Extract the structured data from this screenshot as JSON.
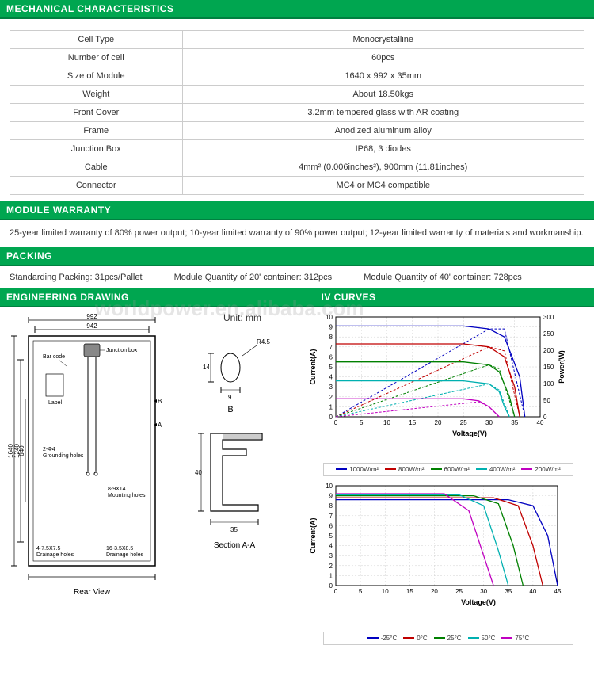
{
  "sections": {
    "mech": "MECHANICAL  CHARACTERISTICS",
    "warranty": "MODULE WARRANTY",
    "packing": "PACKING",
    "engdraw": "ENGINEERING DRAWING",
    "ivcurves": "IV CURVES"
  },
  "mech_table": {
    "rows": [
      [
        "Cell Type",
        "Monocrystalline"
      ],
      [
        "Number of cell",
        "60pcs"
      ],
      [
        "Size of Module",
        "1640 x 992 x 35mm"
      ],
      [
        "Weight",
        "About 18.50kgs"
      ],
      [
        "Front Cover",
        "3.2mm tempered glass with AR coating"
      ],
      [
        "Frame",
        "Anodized aluminum alloy"
      ],
      [
        "Junction Box",
        "IP68, 3 diodes"
      ],
      [
        "Cable",
        "4mm² (0.006inches²), 900mm (11.81inches)"
      ],
      [
        "Connector",
        "MC4 or MC4 compatible"
      ]
    ]
  },
  "warranty_text": "25-year limited warranty of 80% power output; 10-year limited warranty of 90% power output; 12-year limited warranty of materials and workmanship.",
  "packing": {
    "std": "Standarding Packing: 31pcs/Pallet",
    "c20": "Module Quantity of 20' container: 312pcs",
    "c40": "Module Quantity of 40' container: 728pcs"
  },
  "watermark": "worldpower.en.alibaba.com",
  "drawing": {
    "unit_label": "Unit: mm",
    "outer_w": "992",
    "inner_w": "942",
    "outer_h": "1640",
    "inner_h2": "1240",
    "inner_h1": "640",
    "bar_code": "Bar code",
    "jbox": "Junction box",
    "label_txt": "Label",
    "ground": "2-Φ4\nGrounding holes",
    "mount": "8-9X14\nMounting holes",
    "drain_l": "4-7.5X7.5\nDrainage holes",
    "drain_r": "16-3.5X8.5\nDrainage holes",
    "rear_view": "Rear View",
    "section_aa": "Section A-A",
    "section_b": "B",
    "r45": "R4.5",
    "d14": "14",
    "d9": "9",
    "f40": "40",
    "f35": "35"
  },
  "iv_chart1": {
    "type": "line",
    "title": "",
    "xlabel": "Voltage(V)",
    "ylabel_l": "Current(A)",
    "ylabel_r": "Power(W)",
    "xlim": [
      0,
      40
    ],
    "xtick_step": 5,
    "ylim_l": [
      0,
      10
    ],
    "ytick_l_step": 1,
    "ylim_r": [
      0,
      300
    ],
    "ytick_r_step": 50,
    "grid_color": "#d0d0d0",
    "bg": "#ffffff",
    "label_fontsize": 9,
    "series": [
      {
        "name": "1000W/m²",
        "color": "#0000c0",
        "iv": [
          [
            0,
            9.1
          ],
          [
            25,
            9.1
          ],
          [
            30,
            8.8
          ],
          [
            33,
            8.0
          ],
          [
            36,
            4.0
          ],
          [
            37,
            0
          ]
        ],
        "pv": [
          [
            0,
            0
          ],
          [
            30,
            264
          ],
          [
            33,
            264
          ],
          [
            37,
            0
          ]
        ]
      },
      {
        "name": "800W/m²",
        "color": "#c00000",
        "iv": [
          [
            0,
            7.3
          ],
          [
            25,
            7.3
          ],
          [
            30,
            7.0
          ],
          [
            33,
            6.0
          ],
          [
            35,
            3.0
          ],
          [
            36,
            0
          ]
        ],
        "pv": [
          [
            0,
            0
          ],
          [
            30,
            210
          ],
          [
            33,
            198
          ],
          [
            36,
            0
          ]
        ]
      },
      {
        "name": "600W/m²",
        "color": "#008000",
        "iv": [
          [
            0,
            5.5
          ],
          [
            25,
            5.5
          ],
          [
            30,
            5.2
          ],
          [
            32,
            4.5
          ],
          [
            34,
            2.0
          ],
          [
            35,
            0
          ]
        ],
        "pv": [
          [
            0,
            0
          ],
          [
            30,
            156
          ],
          [
            32,
            144
          ],
          [
            35,
            0
          ]
        ]
      },
      {
        "name": "400W/m²",
        "color": "#00b0b0",
        "iv": [
          [
            0,
            3.6
          ],
          [
            25,
            3.6
          ],
          [
            30,
            3.3
          ],
          [
            32,
            2.5
          ],
          [
            33,
            1.0
          ],
          [
            34,
            0
          ]
        ],
        "pv": [
          [
            0,
            0
          ],
          [
            30,
            99
          ],
          [
            32,
            80
          ],
          [
            34,
            0
          ]
        ]
      },
      {
        "name": "200W/m²",
        "color": "#c000c0",
        "iv": [
          [
            0,
            1.8
          ],
          [
            25,
            1.8
          ],
          [
            28,
            1.6
          ],
          [
            30,
            1.0
          ],
          [
            32,
            0
          ]
        ],
        "pv": [
          [
            0,
            0
          ],
          [
            28,
            45
          ],
          [
            30,
            30
          ],
          [
            32,
            0
          ]
        ]
      }
    ]
  },
  "iv_chart2": {
    "type": "line",
    "xlabel": "Voltage(V)",
    "ylabel_l": "Current(A)",
    "xlim": [
      0,
      45
    ],
    "xtick_step": 5,
    "ylim_l": [
      0,
      10
    ],
    "ytick_l_step": 1,
    "grid_color": "#d0d0d0",
    "bg": "#ffffff",
    "label_fontsize": 9,
    "series": [
      {
        "name": "-25°C",
        "color": "#0000c0",
        "iv": [
          [
            0,
            8.6
          ],
          [
            35,
            8.6
          ],
          [
            40,
            8.0
          ],
          [
            43,
            5.0
          ],
          [
            45,
            0
          ]
        ]
      },
      {
        "name": "0°C",
        "color": "#c00000",
        "iv": [
          [
            0,
            8.8
          ],
          [
            32,
            8.8
          ],
          [
            37,
            8.0
          ],
          [
            40,
            4.0
          ],
          [
            42,
            0
          ]
        ]
      },
      {
        "name": "25°C",
        "color": "#008000",
        "iv": [
          [
            0,
            9.0
          ],
          [
            28,
            9.0
          ],
          [
            33,
            8.2
          ],
          [
            36,
            4.0
          ],
          [
            38,
            0
          ]
        ]
      },
      {
        "name": "50°C",
        "color": "#00b0b0",
        "iv": [
          [
            0,
            9.1
          ],
          [
            25,
            9.1
          ],
          [
            30,
            8.0
          ],
          [
            33,
            3.5
          ],
          [
            35,
            0
          ]
        ]
      },
      {
        "name": "75°C",
        "color": "#c000c0",
        "iv": [
          [
            0,
            9.2
          ],
          [
            22,
            9.2
          ],
          [
            27,
            7.5
          ],
          [
            30,
            3.0
          ],
          [
            32,
            0
          ]
        ]
      }
    ]
  }
}
